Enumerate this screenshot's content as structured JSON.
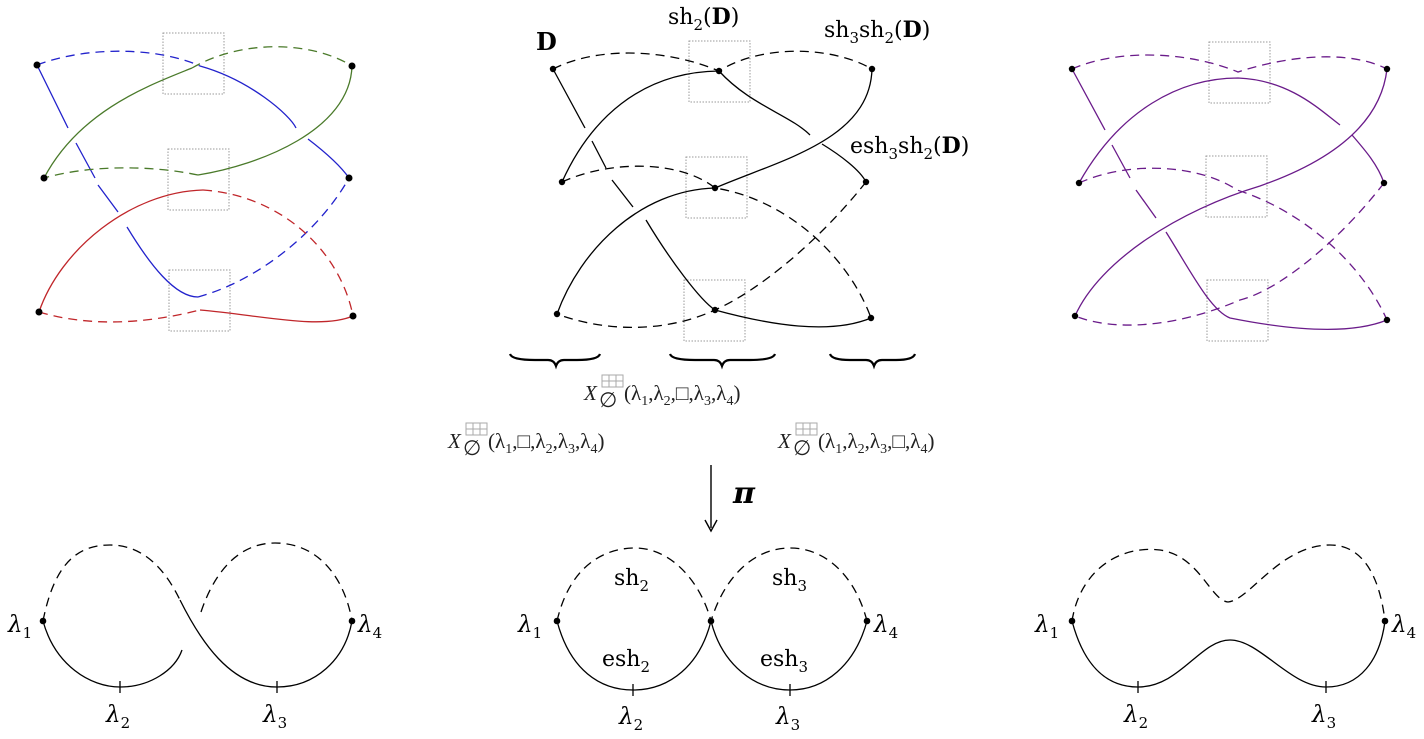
{
  "colors": {
    "blue": "#2222cc",
    "green": "#4a7a2a",
    "red": "#c0262a",
    "purple": "#6a1b8a",
    "black": "#000000",
    "box": "#999999"
  },
  "labels": {
    "D": "D",
    "sh2": {
      "op": "sh",
      "sub": "2",
      "arg": "D"
    },
    "sh3sh2": {
      "op1": "sh",
      "sub1": "3",
      "op2": "sh",
      "sub2": "2",
      "arg": "D"
    },
    "esh3sh2": {
      "op1": "esh",
      "sub1": "3",
      "op2": "sh",
      "sub2": "2",
      "arg": "D"
    }
  },
  "formulas": {
    "center": {
      "X": "X",
      "sub": "∅",
      "tokens": [
        {
          "t": "(λ"
        },
        {
          "s": "1"
        },
        {
          "t": ",λ"
        },
        {
          "s": "2"
        },
        {
          "t": ",□,λ"
        },
        {
          "s": "3"
        },
        {
          "t": ",λ"
        },
        {
          "s": "4"
        },
        {
          "t": ")"
        }
      ]
    },
    "left": {
      "X": "X",
      "sub": "∅",
      "tokens": [
        {
          "t": "(λ"
        },
        {
          "s": "1"
        },
        {
          "t": ",□,λ"
        },
        {
          "s": "2"
        },
        {
          "t": ",λ"
        },
        {
          "s": "3"
        },
        {
          "t": ",λ"
        },
        {
          "s": "4"
        },
        {
          "t": ")"
        }
      ]
    },
    "right": {
      "X": "X",
      "sub": "∅",
      "tokens": [
        {
          "t": "(λ"
        },
        {
          "s": "1"
        },
        {
          "t": ",λ"
        },
        {
          "s": "2"
        },
        {
          "t": ",λ"
        },
        {
          "s": "3"
        },
        {
          "t": ",□,λ"
        },
        {
          "s": "4"
        },
        {
          "t": ")"
        }
      ]
    }
  },
  "arrow_label": "π",
  "bottom": {
    "lambda": "λ",
    "subs": [
      "1",
      "2",
      "3",
      "4"
    ],
    "sh": "sh",
    "esh": "esh",
    "sh2_sub": "2",
    "sh3_sub": "3"
  }
}
